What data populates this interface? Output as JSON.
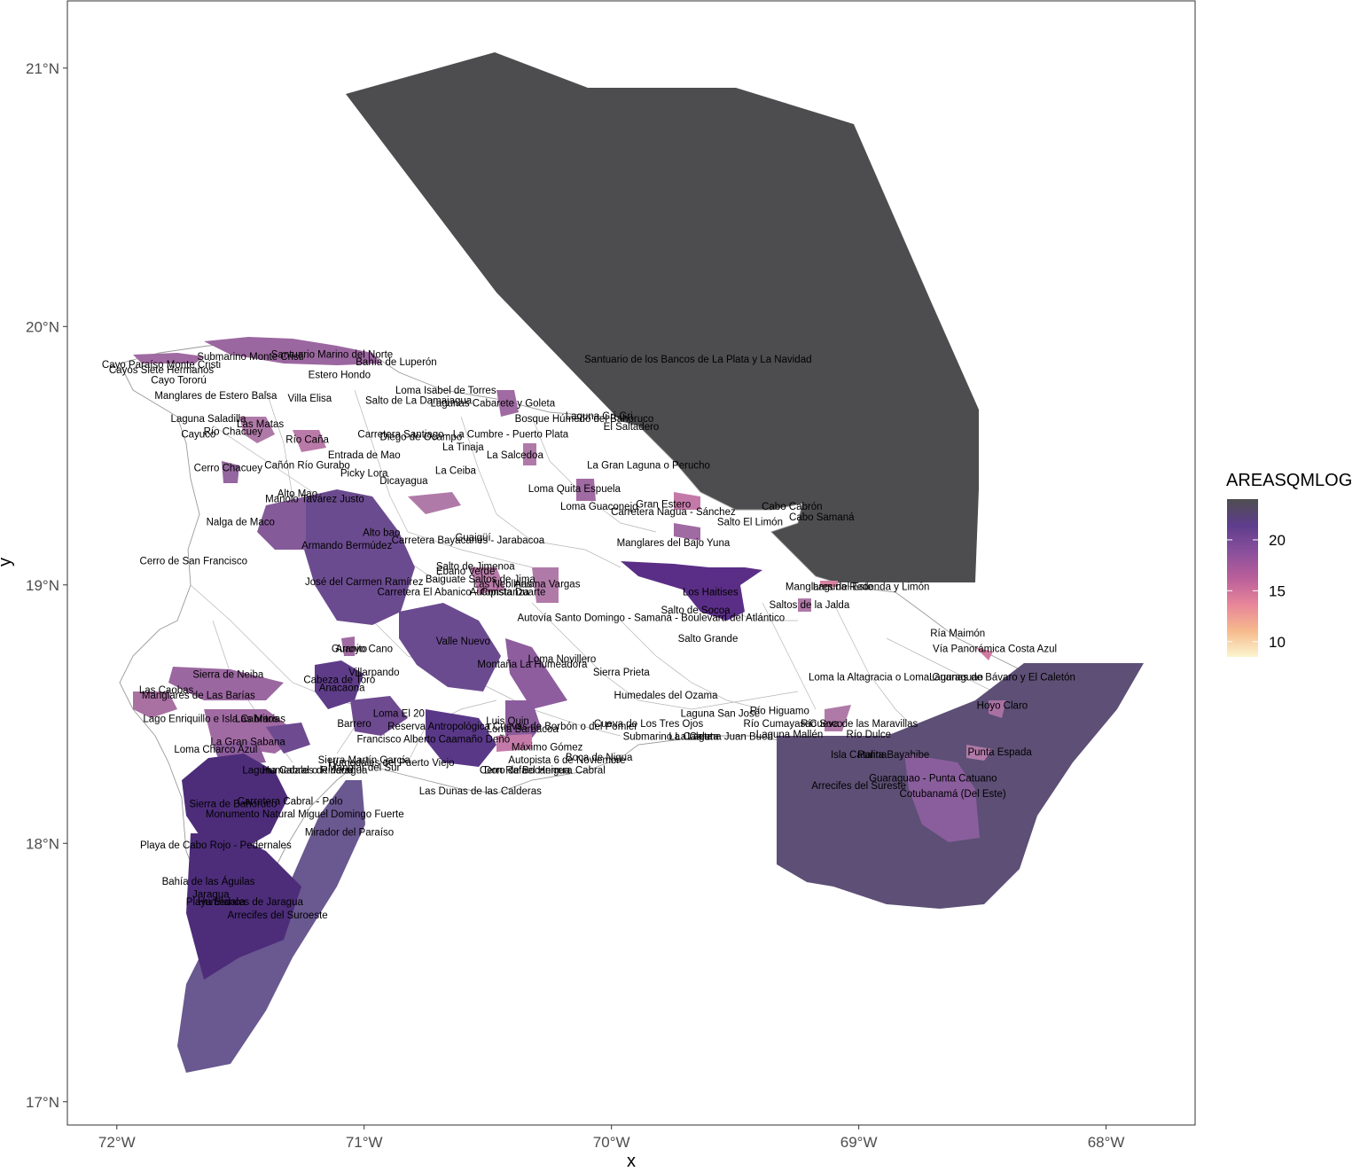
{
  "map": {
    "x_axis_title": "x",
    "y_axis_title": "y",
    "x_ticks": [
      "72°W",
      "71°W",
      "70°W",
      "69°W",
      "68°W"
    ],
    "y_ticks": [
      "17°N",
      "18°N",
      "19°N",
      "20°N",
      "21°N"
    ],
    "lon_range": [
      -72.2,
      -67.64
    ],
    "lat_range": [
      16.91,
      21.26
    ],
    "legend": {
      "title": "AREASQMLOG",
      "ticks": [
        "10",
        "15",
        "20"
      ],
      "tick_values": [
        10,
        15,
        20
      ],
      "value_range": [
        8.5,
        24
      ],
      "colors": [
        "#fcf5cf",
        "#f6b98c",
        "#e8859a",
        "#b95f9a",
        "#8a4f9c",
        "#5e3d8c",
        "#4e4e50"
      ]
    },
    "labels": [
      {
        "text": "Santuario de los Bancos de La Plata y La Navidad",
        "lon": -69.65,
        "lat": 19.86
      },
      {
        "text": "Cayo Tororú",
        "lon": -71.75,
        "lat": 19.78
      },
      {
        "text": "Manglares de Estero Balsa",
        "lon": -71.6,
        "lat": 19.72
      },
      {
        "text": "Villa Elisa",
        "lon": -71.22,
        "lat": 19.71
      },
      {
        "text": "Estero Hondo",
        "lon": -71.1,
        "lat": 19.8
      },
      {
        "text": "Laguna Saladilla",
        "lon": -71.63,
        "lat": 19.63
      },
      {
        "text": "Cayuco",
        "lon": -71.67,
        "lat": 19.57
      },
      {
        "text": "Río Chacuey",
        "lon": -71.53,
        "lat": 19.58
      },
      {
        "text": "Las Matas",
        "lon": -71.42,
        "lat": 19.61
      },
      {
        "text": "Río Caña",
        "lon": -71.23,
        "lat": 19.55
      },
      {
        "text": "Cerro Chacuey",
        "lon": -71.55,
        "lat": 19.44
      },
      {
        "text": "Cañón Río Gurabo",
        "lon": -71.23,
        "lat": 19.45
      },
      {
        "text": "Entrada de Mao",
        "lon": -71.0,
        "lat": 19.49
      },
      {
        "text": "Picky Lora",
        "lon": -71.0,
        "lat": 19.42
      },
      {
        "text": "Loma Isabel de Torres",
        "lon": -70.67,
        "lat": 19.74
      },
      {
        "text": "Salto de La Damajagua",
        "lon": -70.78,
        "lat": 19.7
      },
      {
        "text": "Lagunas Cabarete y Goleta",
        "lon": -70.48,
        "lat": 19.69
      },
      {
        "text": "Carretera Santiago - La Cumbre - Puerto Plata",
        "lon": -70.6,
        "lat": 19.57
      },
      {
        "text": "Diego de Ocampo",
        "lon": -70.77,
        "lat": 19.56
      },
      {
        "text": "La Tinaja",
        "lon": -70.6,
        "lat": 19.52
      },
      {
        "text": "La Salcedoa",
        "lon": -70.39,
        "lat": 19.49
      },
      {
        "text": "La Ceiba",
        "lon": -70.63,
        "lat": 19.43
      },
      {
        "text": "Dicayagua",
        "lon": -70.84,
        "lat": 19.39
      },
      {
        "text": "El Saltadero",
        "lon": -69.92,
        "lat": 19.6
      },
      {
        "text": "Bosque Húmedo del Bahoruco",
        "lon": -70.11,
        "lat": 19.63
      },
      {
        "text": "Laguna Gri-Gri",
        "lon": -70.05,
        "lat": 19.64
      },
      {
        "text": "Cayo Paraíso Monte Cristi",
        "lon": -71.82,
        "lat": 19.84
      },
      {
        "text": "Submarino Monte Cristi",
        "lon": -71.46,
        "lat": 19.87
      },
      {
        "text": "Santuario Marino del Norte",
        "lon": -71.13,
        "lat": 19.88
      },
      {
        "text": "Bahía de Luperón",
        "lon": -70.87,
        "lat": 19.85
      },
      {
        "text": "Cayos Siete Hermanos",
        "lon": -71.82,
        "lat": 19.82
      },
      {
        "text": "La Gran Laguna o Perucho",
        "lon": -69.85,
        "lat": 19.45
      },
      {
        "text": "Loma Quita Espuela",
        "lon": -70.15,
        "lat": 19.36
      },
      {
        "text": "Loma Guaconejo",
        "lon": -70.05,
        "lat": 19.29
      },
      {
        "text": "Gran Estero",
        "lon": -69.79,
        "lat": 19.3
      },
      {
        "text": "Carretera Nagua - Sánchez",
        "lon": -69.75,
        "lat": 19.27
      },
      {
        "text": "Cabo Cabrón",
        "lon": -69.27,
        "lat": 19.29
      },
      {
        "text": "Cabo Samaná",
        "lon": -69.15,
        "lat": 19.25
      },
      {
        "text": "Salto El Limón",
        "lon": -69.44,
        "lat": 19.23
      },
      {
        "text": "Manglares del Bajo Yuna",
        "lon": -69.75,
        "lat": 19.15
      },
      {
        "text": "Los Haitises",
        "lon": -69.6,
        "lat": 18.96
      },
      {
        "text": "Manglares del Este",
        "lon": -69.12,
        "lat": 18.98
      },
      {
        "text": "Laguna Redonda y Limón",
        "lon": -68.95,
        "lat": 18.98
      },
      {
        "text": "Saltos de la Jalda",
        "lon": -69.2,
        "lat": 18.91
      },
      {
        "text": "Alto Mao",
        "lon": -71.27,
        "lat": 19.34
      },
      {
        "text": "Manolo Tavárez Justo",
        "lon": -71.2,
        "lat": 19.32
      },
      {
        "text": "Nalga de Maco",
        "lon": -71.5,
        "lat": 19.23
      },
      {
        "text": "Alto bao",
        "lon": -70.93,
        "lat": 19.19
      },
      {
        "text": "Armando Bermúdez",
        "lon": -71.07,
        "lat": 19.14
      },
      {
        "text": "Carretera Bayacanes - Jarabacoa",
        "lon": -70.58,
        "lat": 19.16
      },
      {
        "text": "Guaigüí",
        "lon": -70.56,
        "lat": 19.17
      },
      {
        "text": "Cerro de San Francisco",
        "lon": -71.69,
        "lat": 19.08
      },
      {
        "text": "Salto de Jimenoa",
        "lon": -70.55,
        "lat": 19.06
      },
      {
        "text": "Ebano Verde",
        "lon": -70.59,
        "lat": 19.04
      },
      {
        "text": "Baiguate Saltos de Jima",
        "lon": -70.53,
        "lat": 19.01
      },
      {
        "text": "José del Carmen Ramírez",
        "lon": -71.0,
        "lat": 19.0
      },
      {
        "text": "Las Neblinas",
        "lon": -70.44,
        "lat": 18.99
      },
      {
        "text": "Aniana Vargas",
        "lon": -70.26,
        "lat": 18.99
      },
      {
        "text": "Carretera El Abanico - Constanza",
        "lon": -70.64,
        "lat": 18.96
      },
      {
        "text": "Autopista Duarte",
        "lon": -70.42,
        "lat": 18.96
      },
      {
        "text": "Salto de Socoa",
        "lon": -69.66,
        "lat": 18.89
      },
      {
        "text": "Autovía Santo Domingo - Samaná - Boulevard del Atlántico",
        "lon": -69.84,
        "lat": 18.86
      },
      {
        "text": "Salto Grande",
        "lon": -69.61,
        "lat": 18.78
      },
      {
        "text": "Ría Maimón",
        "lon": -68.6,
        "lat": 18.8
      },
      {
        "text": "Vía Panorámica Costa Azul",
        "lon": -68.45,
        "lat": 18.74
      },
      {
        "text": "Valle Nuevo",
        "lon": -70.6,
        "lat": 18.77
      },
      {
        "text": "Guanito",
        "lon": -71.06,
        "lat": 18.74
      },
      {
        "text": "Arroyo Cano",
        "lon": -71.0,
        "lat": 18.74
      },
      {
        "text": "Loma Novillero",
        "lon": -70.2,
        "lat": 18.7
      },
      {
        "text": "Montaña La Humeadora",
        "lon": -70.32,
        "lat": 18.68
      },
      {
        "text": "Sierra Prieta",
        "lon": -69.96,
        "lat": 18.65
      },
      {
        "text": "Sierra de Neiba",
        "lon": -71.55,
        "lat": 18.64
      },
      {
        "text": "Villarpando",
        "lon": -70.96,
        "lat": 18.65
      },
      {
        "text": "Cabeza de Toro",
        "lon": -71.1,
        "lat": 18.62
      },
      {
        "text": "Anacaona",
        "lon": -71.09,
        "lat": 18.59
      },
      {
        "text": "Las Caobas",
        "lon": -71.8,
        "lat": 18.58
      },
      {
        "text": "Manglares de Las Barías",
        "lon": -71.67,
        "lat": 18.56
      },
      {
        "text": "Loma la Altagracia o Loma Guaraguao",
        "lon": -68.85,
        "lat": 18.63
      },
      {
        "text": "Lagunas de Bávaro y El Caletón",
        "lon": -68.42,
        "lat": 18.63
      },
      {
        "text": "Humedales del Ozama",
        "lon": -69.78,
        "lat": 18.56
      },
      {
        "text": "Hoyo Claro",
        "lon": -68.42,
        "lat": 18.52
      },
      {
        "text": "Lago Enriquillo e Isla Cabritos",
        "lon": -71.62,
        "lat": 18.47
      },
      {
        "text": "Las Marías",
        "lon": -71.42,
        "lat": 18.47
      },
      {
        "text": "Loma El 20",
        "lon": -70.86,
        "lat": 18.49
      },
      {
        "text": "Barrero",
        "lon": -71.04,
        "lat": 18.45
      },
      {
        "text": "Reserva Antropológica Cuevas de Borbón o del Pomier",
        "lon": -70.4,
        "lat": 18.44
      },
      {
        "text": "Cueva de Los Tres Ojos",
        "lon": -69.85,
        "lat": 18.45
      },
      {
        "text": "Laguna San José",
        "lon": -69.56,
        "lat": 18.49
      },
      {
        "text": "Río Higuamo",
        "lon": -69.32,
        "lat": 18.5
      },
      {
        "text": "Río Cumayasa",
        "lon": -69.33,
        "lat": 18.45
      },
      {
        "text": "Río Soco",
        "lon": -69.15,
        "lat": 18.45
      },
      {
        "text": "Cueva de las Maravillas",
        "lon": -68.98,
        "lat": 18.45
      },
      {
        "text": "Río Dulce",
        "lon": -68.96,
        "lat": 18.41
      },
      {
        "text": "Luis Quin",
        "lon": -70.42,
        "lat": 18.46
      },
      {
        "text": "Loma Barbacoa",
        "lon": -70.36,
        "lat": 18.43
      },
      {
        "text": "Francisco Alberto Caamaño Deñó",
        "lon": -70.72,
        "lat": 18.39
      },
      {
        "text": "Submarino La Caleta",
        "lon": -69.76,
        "lat": 18.4
      },
      {
        "text": "La Caleta",
        "lon": -69.68,
        "lat": 18.4
      },
      {
        "text": "Laguna Mallén",
        "lon": -69.28,
        "lat": 18.41
      },
      {
        "text": "Laguna Juan Buen",
        "lon": -69.52,
        "lat": 18.4
      },
      {
        "text": "La Gran Sabana",
        "lon": -71.47,
        "lat": 18.38
      },
      {
        "text": "Loma Charco Azul",
        "lon": -71.6,
        "lat": 18.35
      },
      {
        "text": "Máximo Gómez",
        "lon": -70.26,
        "lat": 18.36
      },
      {
        "text": "Boca de Nigua",
        "lon": -70.05,
        "lat": 18.32
      },
      {
        "text": "Autopista 6 de Noviembre",
        "lon": -70.18,
        "lat": 18.31
      },
      {
        "text": "Isla Catalina",
        "lon": -69.0,
        "lat": 18.33
      },
      {
        "text": "Punta Bayahibe",
        "lon": -68.86,
        "lat": 18.33
      },
      {
        "text": "Punta Espada",
        "lon": -68.43,
        "lat": 18.34
      },
      {
        "text": "Sierra Martín García",
        "lon": -71.0,
        "lat": 18.31
      },
      {
        "text": "Humedales del Puerto Viejo",
        "lon": -70.89,
        "lat": 18.3
      },
      {
        "text": "Laguna Cabral o Rincón",
        "lon": -71.27,
        "lat": 18.27
      },
      {
        "text": "Humedales de Jaragua",
        "lon": -71.2,
        "lat": 18.27
      },
      {
        "text": "Manglar del Sur",
        "lon": -71.0,
        "lat": 18.28
      },
      {
        "text": "Cerro de Bocanigua",
        "lon": -70.35,
        "lat": 18.27
      },
      {
        "text": "Don Rafael Herrera Cabral",
        "lon": -70.27,
        "lat": 18.27
      },
      {
        "text": "Guaraguao - Punta Catuano",
        "lon": -68.7,
        "lat": 18.24
      },
      {
        "text": "Arrecifes del Sureste",
        "lon": -69.0,
        "lat": 18.21
      },
      {
        "text": "Cotubanamá (Del Este)",
        "lon": -68.62,
        "lat": 18.18
      },
      {
        "text": "Las Dunas de las Calderas",
        "lon": -70.53,
        "lat": 18.19
      },
      {
        "text": "Carretera Cabral - Polo",
        "lon": -71.3,
        "lat": 18.15
      },
      {
        "text": "Sierra de Bahoruco",
        "lon": -71.53,
        "lat": 18.14
      },
      {
        "text": "Monumento Natural Miguel Domingo Fuerte",
        "lon": -71.24,
        "lat": 18.1
      },
      {
        "text": "Mirador del Paraíso",
        "lon": -71.06,
        "lat": 18.03
      },
      {
        "text": "Playa de Cabo Rojo - Pedernales",
        "lon": -71.6,
        "lat": 17.98
      },
      {
        "text": "Bahía de las Águilas",
        "lon": -71.63,
        "lat": 17.84
      },
      {
        "text": "Jaragua",
        "lon": -71.62,
        "lat": 17.79
      },
      {
        "text": "Playa Blanca",
        "lon": -71.6,
        "lat": 17.76
      },
      {
        "text": "Humedales de Jaragua",
        "lon": -71.46,
        "lat": 17.76
      },
      {
        "text": "Arrecifes del Suroeste",
        "lon": -71.35,
        "lat": 17.71
      }
    ]
  }
}
